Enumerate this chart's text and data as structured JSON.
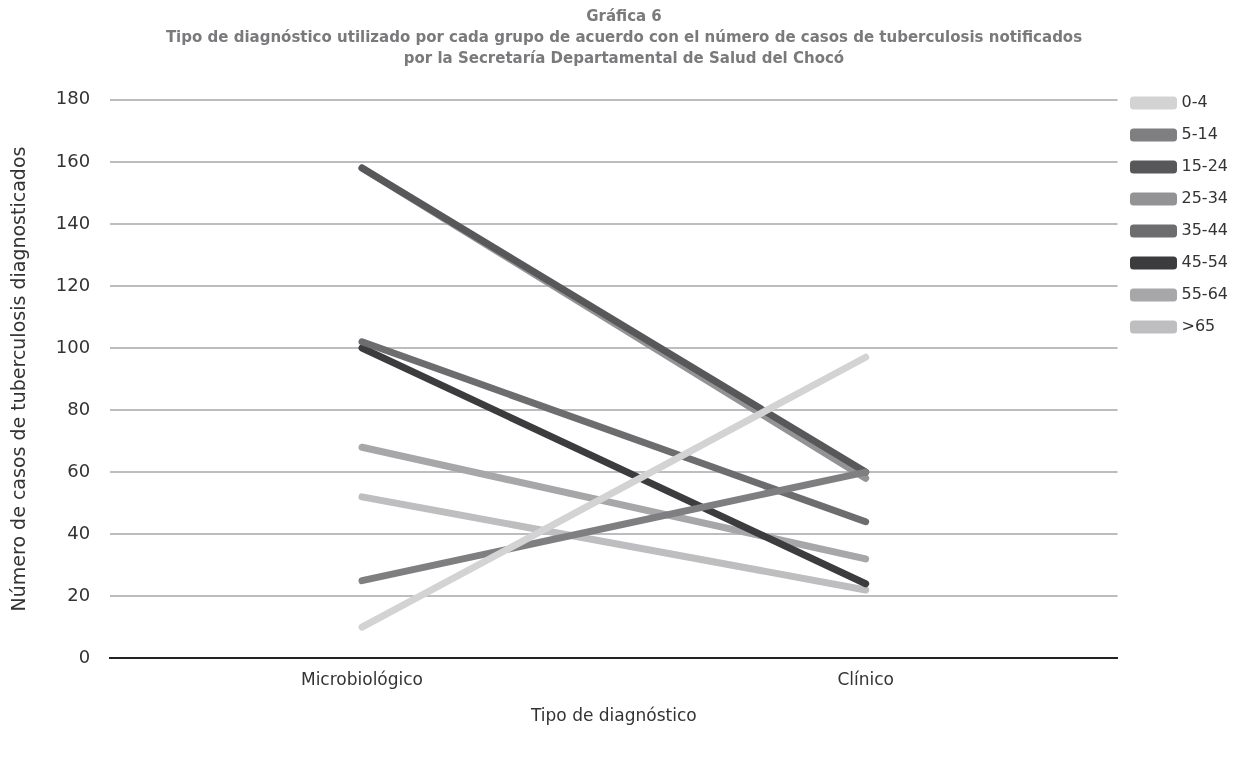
{
  "chart_data": {
    "type": "line",
    "title": "Gráfica 6",
    "subtitle": "Tipo de diagnóstico utilizado por cada grupo de acuerdo con el número de casos de tuberculosis notificados por la Secretaría Departamental de Salud del Chocó",
    "xlabel": "Tipo de diagnóstico",
    "ylabel": "Número de casos de tuberculosis diagnosticados",
    "categories": [
      "Microbiológico",
      "Clínico"
    ],
    "series": [
      {
        "name": "0-4",
        "color": "#d3d3d4",
        "values": [
          10,
          97
        ]
      },
      {
        "name": "5-14",
        "color": "#7f7f82",
        "values": [
          25,
          60
        ]
      },
      {
        "name": "15-24",
        "color": "#58585b",
        "values": [
          158,
          60
        ]
      },
      {
        "name": "25-34",
        "color": "#939396",
        "values": [
          158,
          58
        ]
      },
      {
        "name": "35-44",
        "color": "#6d6d70",
        "values": [
          102,
          44
        ]
      },
      {
        "name": "45-54",
        "color": "#3c3c3e",
        "values": [
          100,
          24
        ]
      },
      {
        "name": "55-64",
        "color": "#a7a7aa",
        "values": [
          68,
          32
        ]
      },
      {
        "name": ">65",
        "color": "#bebec1",
        "values": [
          52,
          22
        ]
      }
    ],
    "ylim": [
      0,
      180
    ],
    "yticks": [
      0,
      20,
      40,
      60,
      80,
      100,
      120,
      140,
      160,
      180
    ],
    "grid": "y",
    "legend": "right",
    "marker": "none",
    "line_style": "solid"
  }
}
